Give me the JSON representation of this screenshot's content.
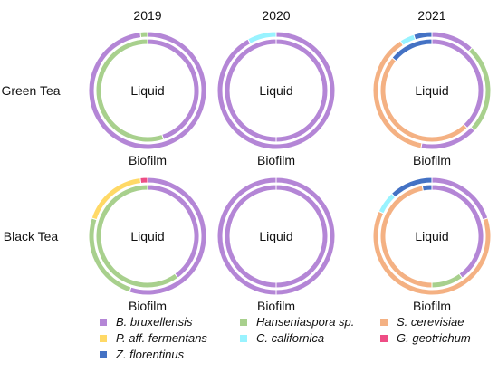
{
  "chart_data": {
    "type": "donut",
    "columns": [
      "2019",
      "2020",
      "2021"
    ],
    "rows": [
      "Green Tea",
      "Black Tea"
    ],
    "inner_ring_label": "Liquid",
    "outer_ring_label": "Biofilm",
    "species": [
      {
        "name": "B. bruxellensis",
        "color": "#B486D6"
      },
      {
        "name": "Hanseniaspora sp.",
        "color": "#A8D08D"
      },
      {
        "name": "S. cerevisiae",
        "color": "#F4B183"
      },
      {
        "name": "P. aff. fermentans",
        "color": "#FFD966"
      },
      {
        "name": "C. californica",
        "color": "#99F3FF"
      },
      {
        "name": "G. geotrichum",
        "color": "#EE4D85"
      },
      {
        "name": "Z. florentinus",
        "color": "#4472C4"
      }
    ],
    "panels": [
      {
        "row": "Green Tea",
        "year": "2019",
        "biofilm": {
          "B. bruxellensis": 98,
          "Hanseniaspora sp.": 2
        },
        "liquid": {
          "B. bruxellensis": 45,
          "Hanseniaspora sp.": 55
        }
      },
      {
        "row": "Green Tea",
        "year": "2020",
        "biofilm": {
          "B. bruxellensis": 92,
          "C. californica": 8
        },
        "liquid": {
          "B. bruxellensis": 100
        }
      },
      {
        "row": "Green Tea",
        "year": "2021",
        "biofilm": {
          "B. bruxellensis": 12,
          "Hanseniaspora sp.": 25,
          "B. bruxellensis ": 16,
          "S. cerevisiae": 38,
          "C. californica": 4,
          "Z. florentinus": 5
        },
        "liquid": {
          "B. bruxellensis": 38,
          "S. cerevisiae": 48,
          "Z. florentinus": 14
        }
      },
      {
        "row": "Black Tea",
        "year": "2019",
        "biofilm": {
          "B. bruxellensis": 55,
          "Hanseniaspora sp.": 25,
          "P. aff. fermentans": 18,
          "G. geotrichum": 2
        },
        "liquid": {
          "B. bruxellensis": 40,
          "Hanseniaspora sp.": 60
        }
      },
      {
        "row": "Black Tea",
        "year": "2020",
        "biofilm": {
          "B. bruxellensis": 100
        },
        "liquid": {
          "B. bruxellensis": 100
        }
      },
      {
        "row": "Black Tea",
        "year": "2021",
        "biofilm": {
          "B. bruxellensis": 20,
          "S. cerevisiae": 62,
          "C. californica": 6,
          "Z. florentinus": 12
        },
        "liquid": {
          "B. bruxellensis": 40,
          "Hanseniaspora sp.": 10,
          "S. cerevisiae": 47,
          "Z. florentinus": 3
        }
      }
    ]
  }
}
